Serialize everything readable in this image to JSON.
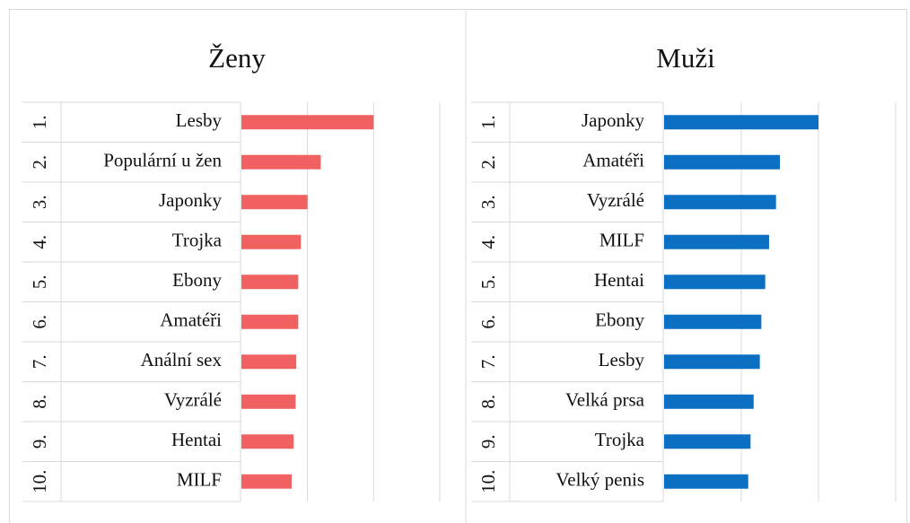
{
  "chart_data": [
    {
      "type": "bar",
      "title": "Ženy",
      "ranks": [
        "1.",
        "2.",
        "3.",
        "4.",
        "5.",
        "6.",
        "7.",
        "8.",
        "9.",
        "10."
      ],
      "categories": [
        "Lesby",
        "Populární u žen",
        "Japonky",
        "Trojka",
        "Ebony",
        "Amatéři",
        "Anální sex",
        "Vyzrálé",
        "Hentai",
        "MILF"
      ],
      "values": [
        2.0,
        1.2,
        1.0,
        0.9,
        0.86,
        0.86,
        0.83,
        0.82,
        0.79,
        0.76
      ],
      "color": "#f06262",
      "xlim": [
        0,
        3
      ],
      "xticks": [
        1,
        2,
        3
      ],
      "grid": true
    },
    {
      "type": "bar",
      "title": "Muži",
      "ranks": [
        "1.",
        "2.",
        "3.",
        "4.",
        "5.",
        "6.",
        "7.",
        "8.",
        "9.",
        "10."
      ],
      "categories": [
        "Japonky",
        "Amatéři",
        "Vyzrálé",
        "MILF",
        "Hentai",
        "Ebony",
        "Lesby",
        "Velká prsa",
        "Trojka",
        "Velký penis"
      ],
      "values": [
        2.0,
        1.5,
        1.45,
        1.36,
        1.31,
        1.26,
        1.24,
        1.16,
        1.12,
        1.09
      ],
      "color": "#0b6fc2",
      "xlim": [
        0,
        3
      ],
      "xticks": [
        1,
        2,
        3
      ],
      "grid": true
    }
  ]
}
